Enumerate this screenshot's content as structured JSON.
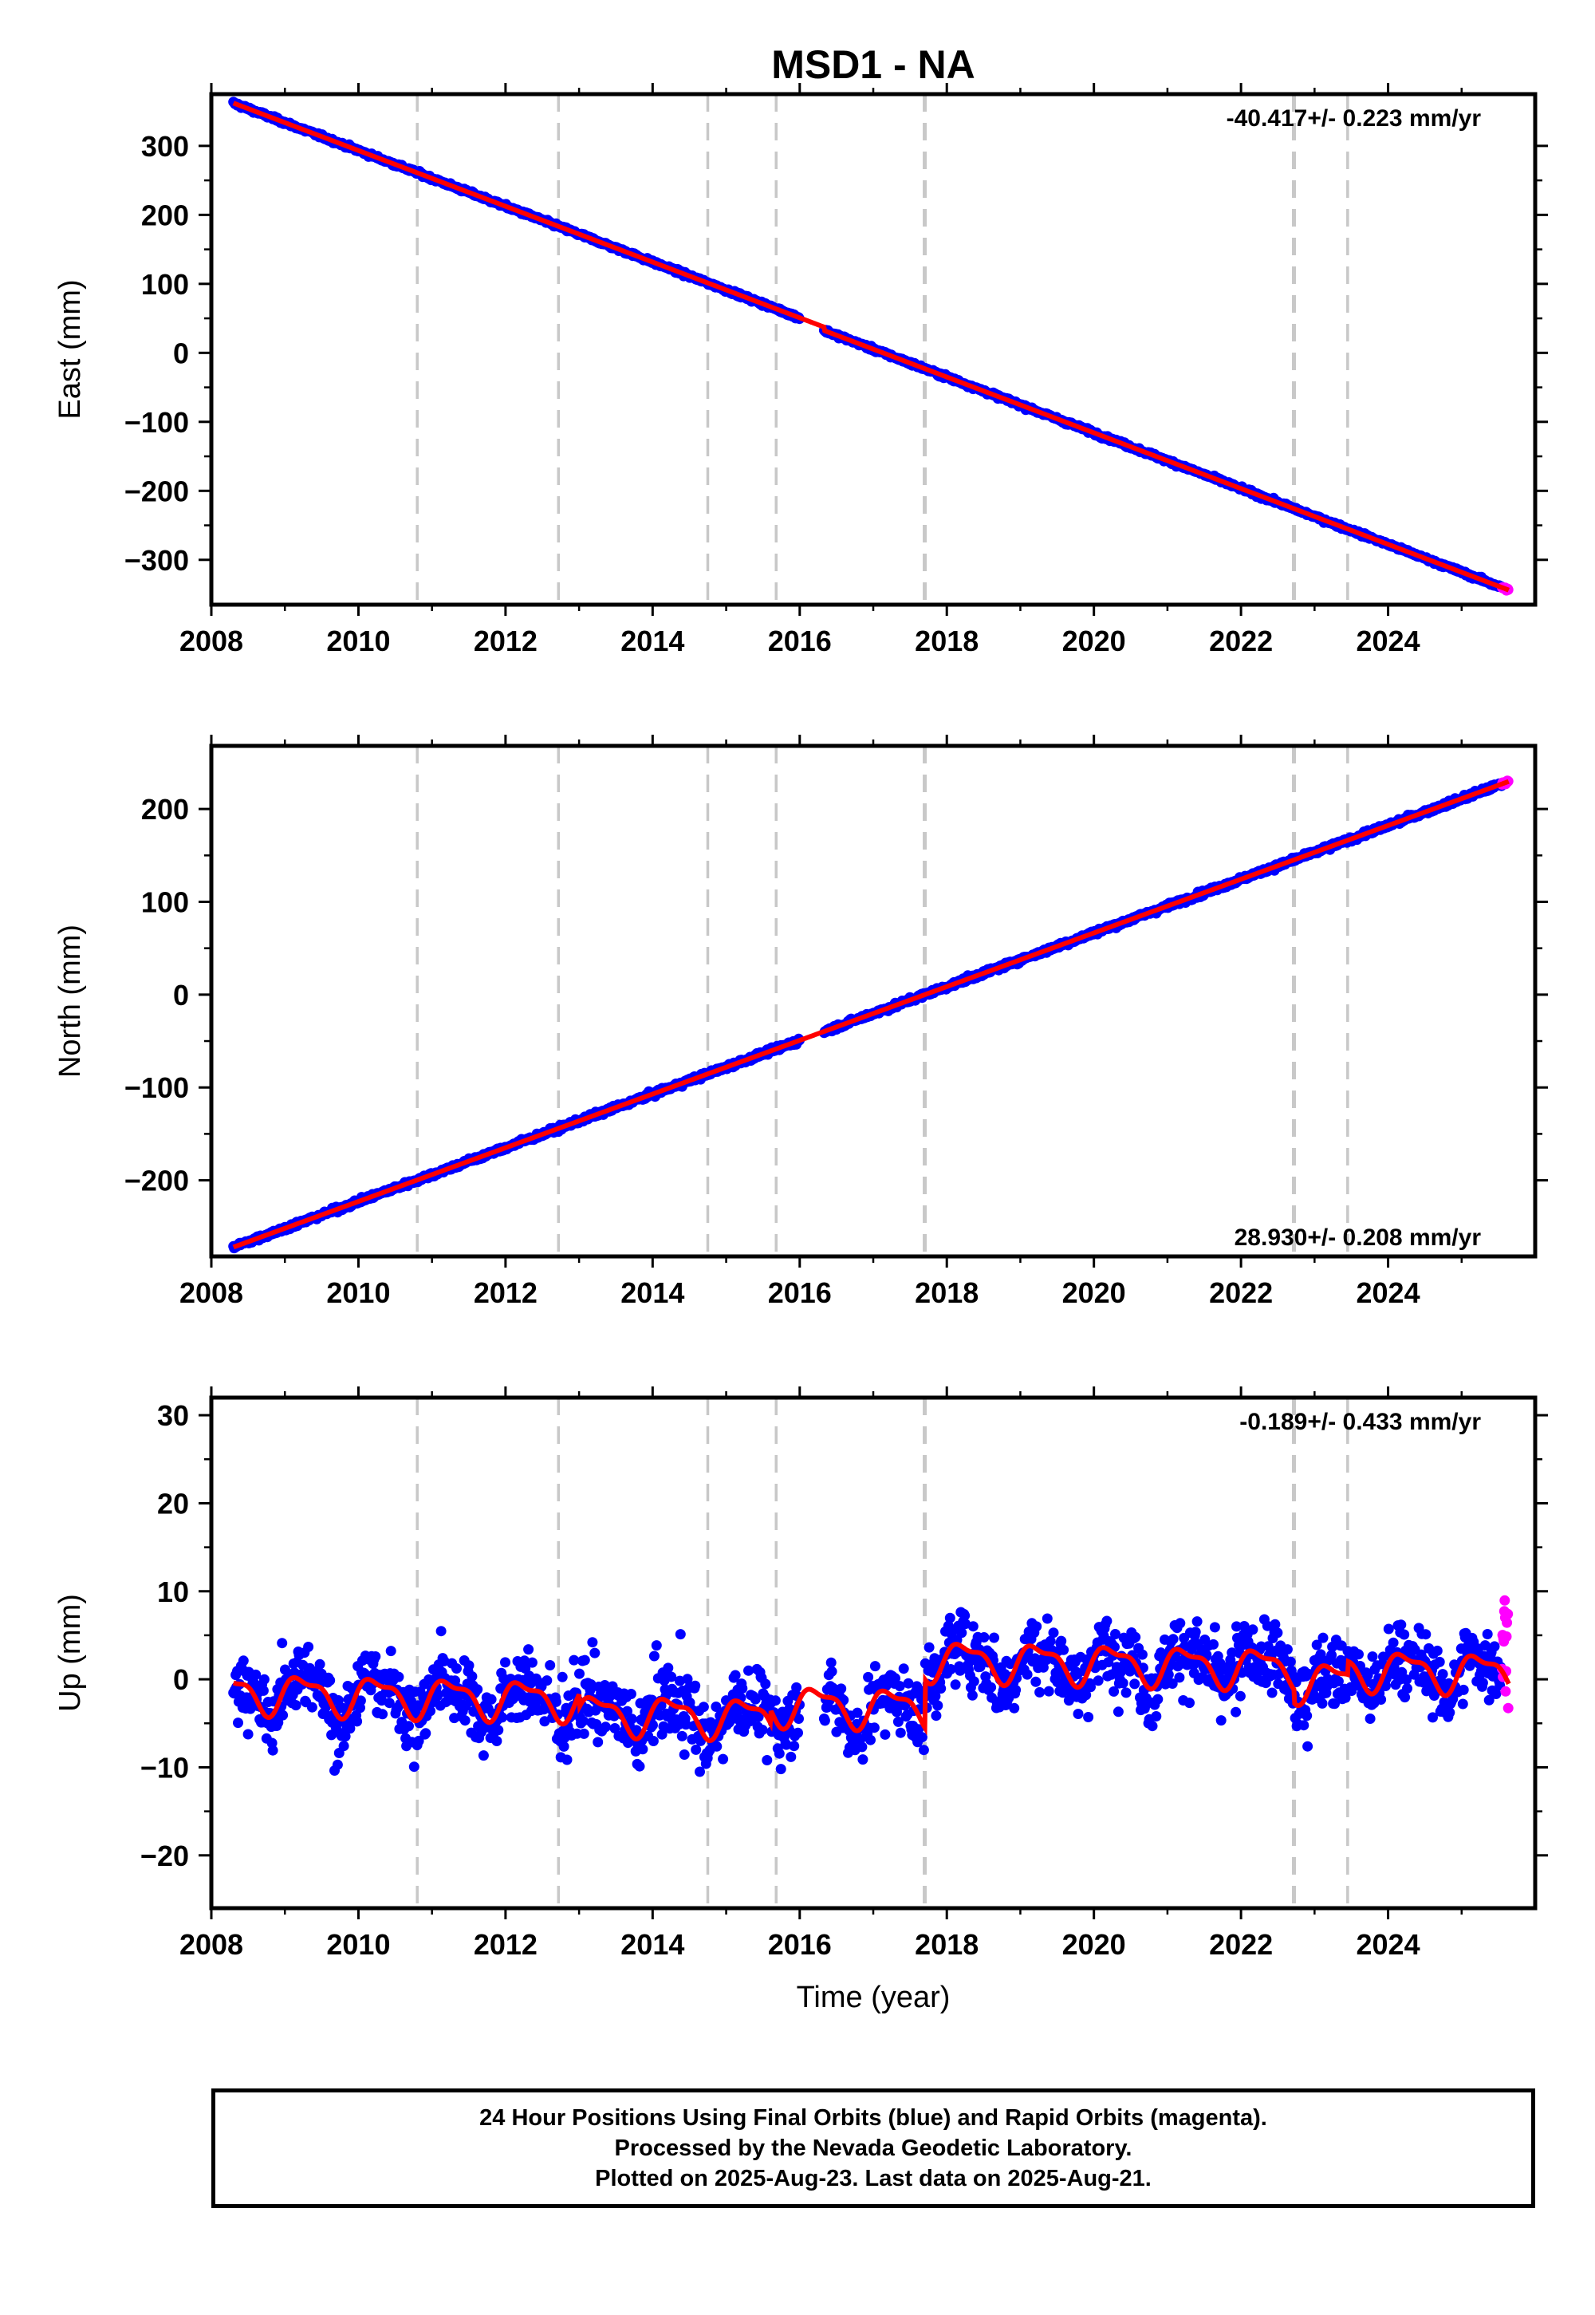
{
  "chart_data": {
    "title": "MSD1 - NA",
    "xlabel": "Time (year)",
    "xlim": [
      2008.0,
      2026.0
    ],
    "x_ticks": [
      2008,
      2010,
      2012,
      2014,
      2016,
      2018,
      2020,
      2022,
      2024
    ],
    "events": [
      2010.8,
      2012.72,
      2014.75,
      2015.68,
      2017.7,
      2022.72,
      2023.45
    ],
    "colors": {
      "final": "#0000ff",
      "rapid": "#ff00ff",
      "model": "#ff0000",
      "event": "#c8c8c8"
    },
    "data_start": 2008.3,
    "rapid_start": 2025.55,
    "data_end": 2025.64,
    "gap": [
      2016.0,
      2016.33
    ],
    "panels": [
      {
        "type": "scatter",
        "name": "east",
        "ylabel": "East (mm)",
        "ylim": [
          -365,
          375
        ],
        "y_ticks": [
          300,
          200,
          100,
          0,
          -100,
          -200,
          -300
        ],
        "y_tick_labels": [
          "300",
          "200",
          "100",
          "0",
          "−100",
          "−200",
          "−300"
        ],
        "rate_label": "-40.417+/- 0.223 mm/yr",
        "rate_position": "top-right",
        "trend": {
          "slope": -40.417,
          "ref_year": 2008.3,
          "ref_value": 362,
          "noise": 2.5,
          "offset_after_gap": -5
        }
      },
      {
        "type": "scatter",
        "name": "north",
        "ylabel": "North (mm)",
        "ylim": [
          -282,
          268
        ],
        "y_ticks": [
          200,
          100,
          0,
          -100,
          -200
        ],
        "y_tick_labels": [
          "200",
          "100",
          "0",
          "−100",
          "−200"
        ],
        "rate_label": "28.930+/- 0.208 mm/yr",
        "rate_position": "bottom-right",
        "trend": {
          "slope": 28.93,
          "ref_year": 2008.3,
          "ref_value": -272,
          "noise": 2.5,
          "offset_after_gap": 0
        }
      },
      {
        "type": "scatter",
        "name": "up",
        "ylabel": "Up (mm)",
        "ylim": [
          -26,
          32
        ],
        "y_ticks": [
          30,
          20,
          10,
          0,
          -10,
          -20
        ],
        "y_tick_labels": [
          "30",
          "20",
          "10",
          "0",
          "−10",
          "−20"
        ],
        "rate_label": "-0.189+/- 0.433 mm/yr",
        "rate_position": "top-right",
        "trend": {
          "slope": -0.189,
          "ref_year": 2008.3,
          "ref_value": -1.5,
          "noise": 3.8,
          "annual_amplitude": 2.0,
          "step_at_2017_7": 5.5
        }
      }
    ]
  },
  "footer": {
    "line1": "24 Hour Positions Using Final Orbits (blue) and Rapid Orbits (magenta).",
    "line2": "Processed by the Nevada Geodetic Laboratory.",
    "line3": "Plotted on 2025-Aug-23. Last data on 2025-Aug-21."
  }
}
